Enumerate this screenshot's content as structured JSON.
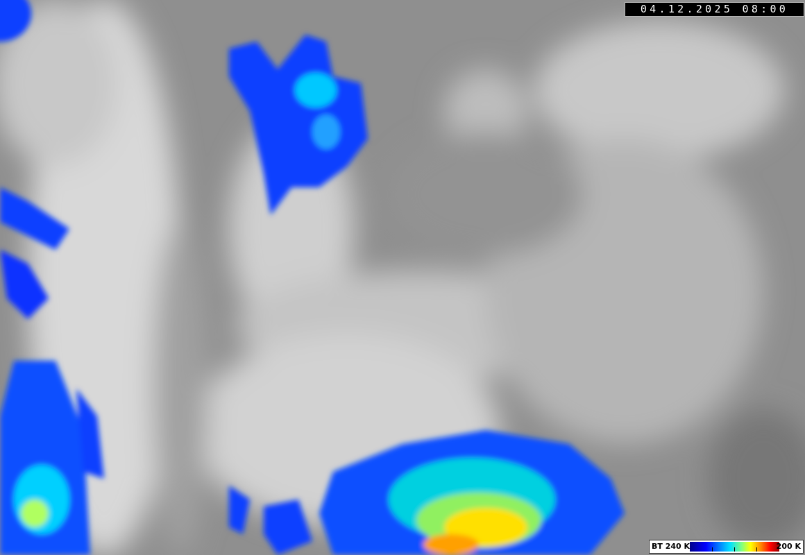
{
  "image": {
    "type": "infrared satellite image",
    "timestamp": "04.12.2025 08:00"
  },
  "legend": {
    "low_label": "BT 240 K",
    "high_label": "200 K",
    "colors": [
      "#00008a",
      "#0000ff",
      "#0080ff",
      "#00e0ff",
      "#80ff80",
      "#ffff00",
      "#ff8000",
      "#ff0000",
      "#900000"
    ]
  }
}
